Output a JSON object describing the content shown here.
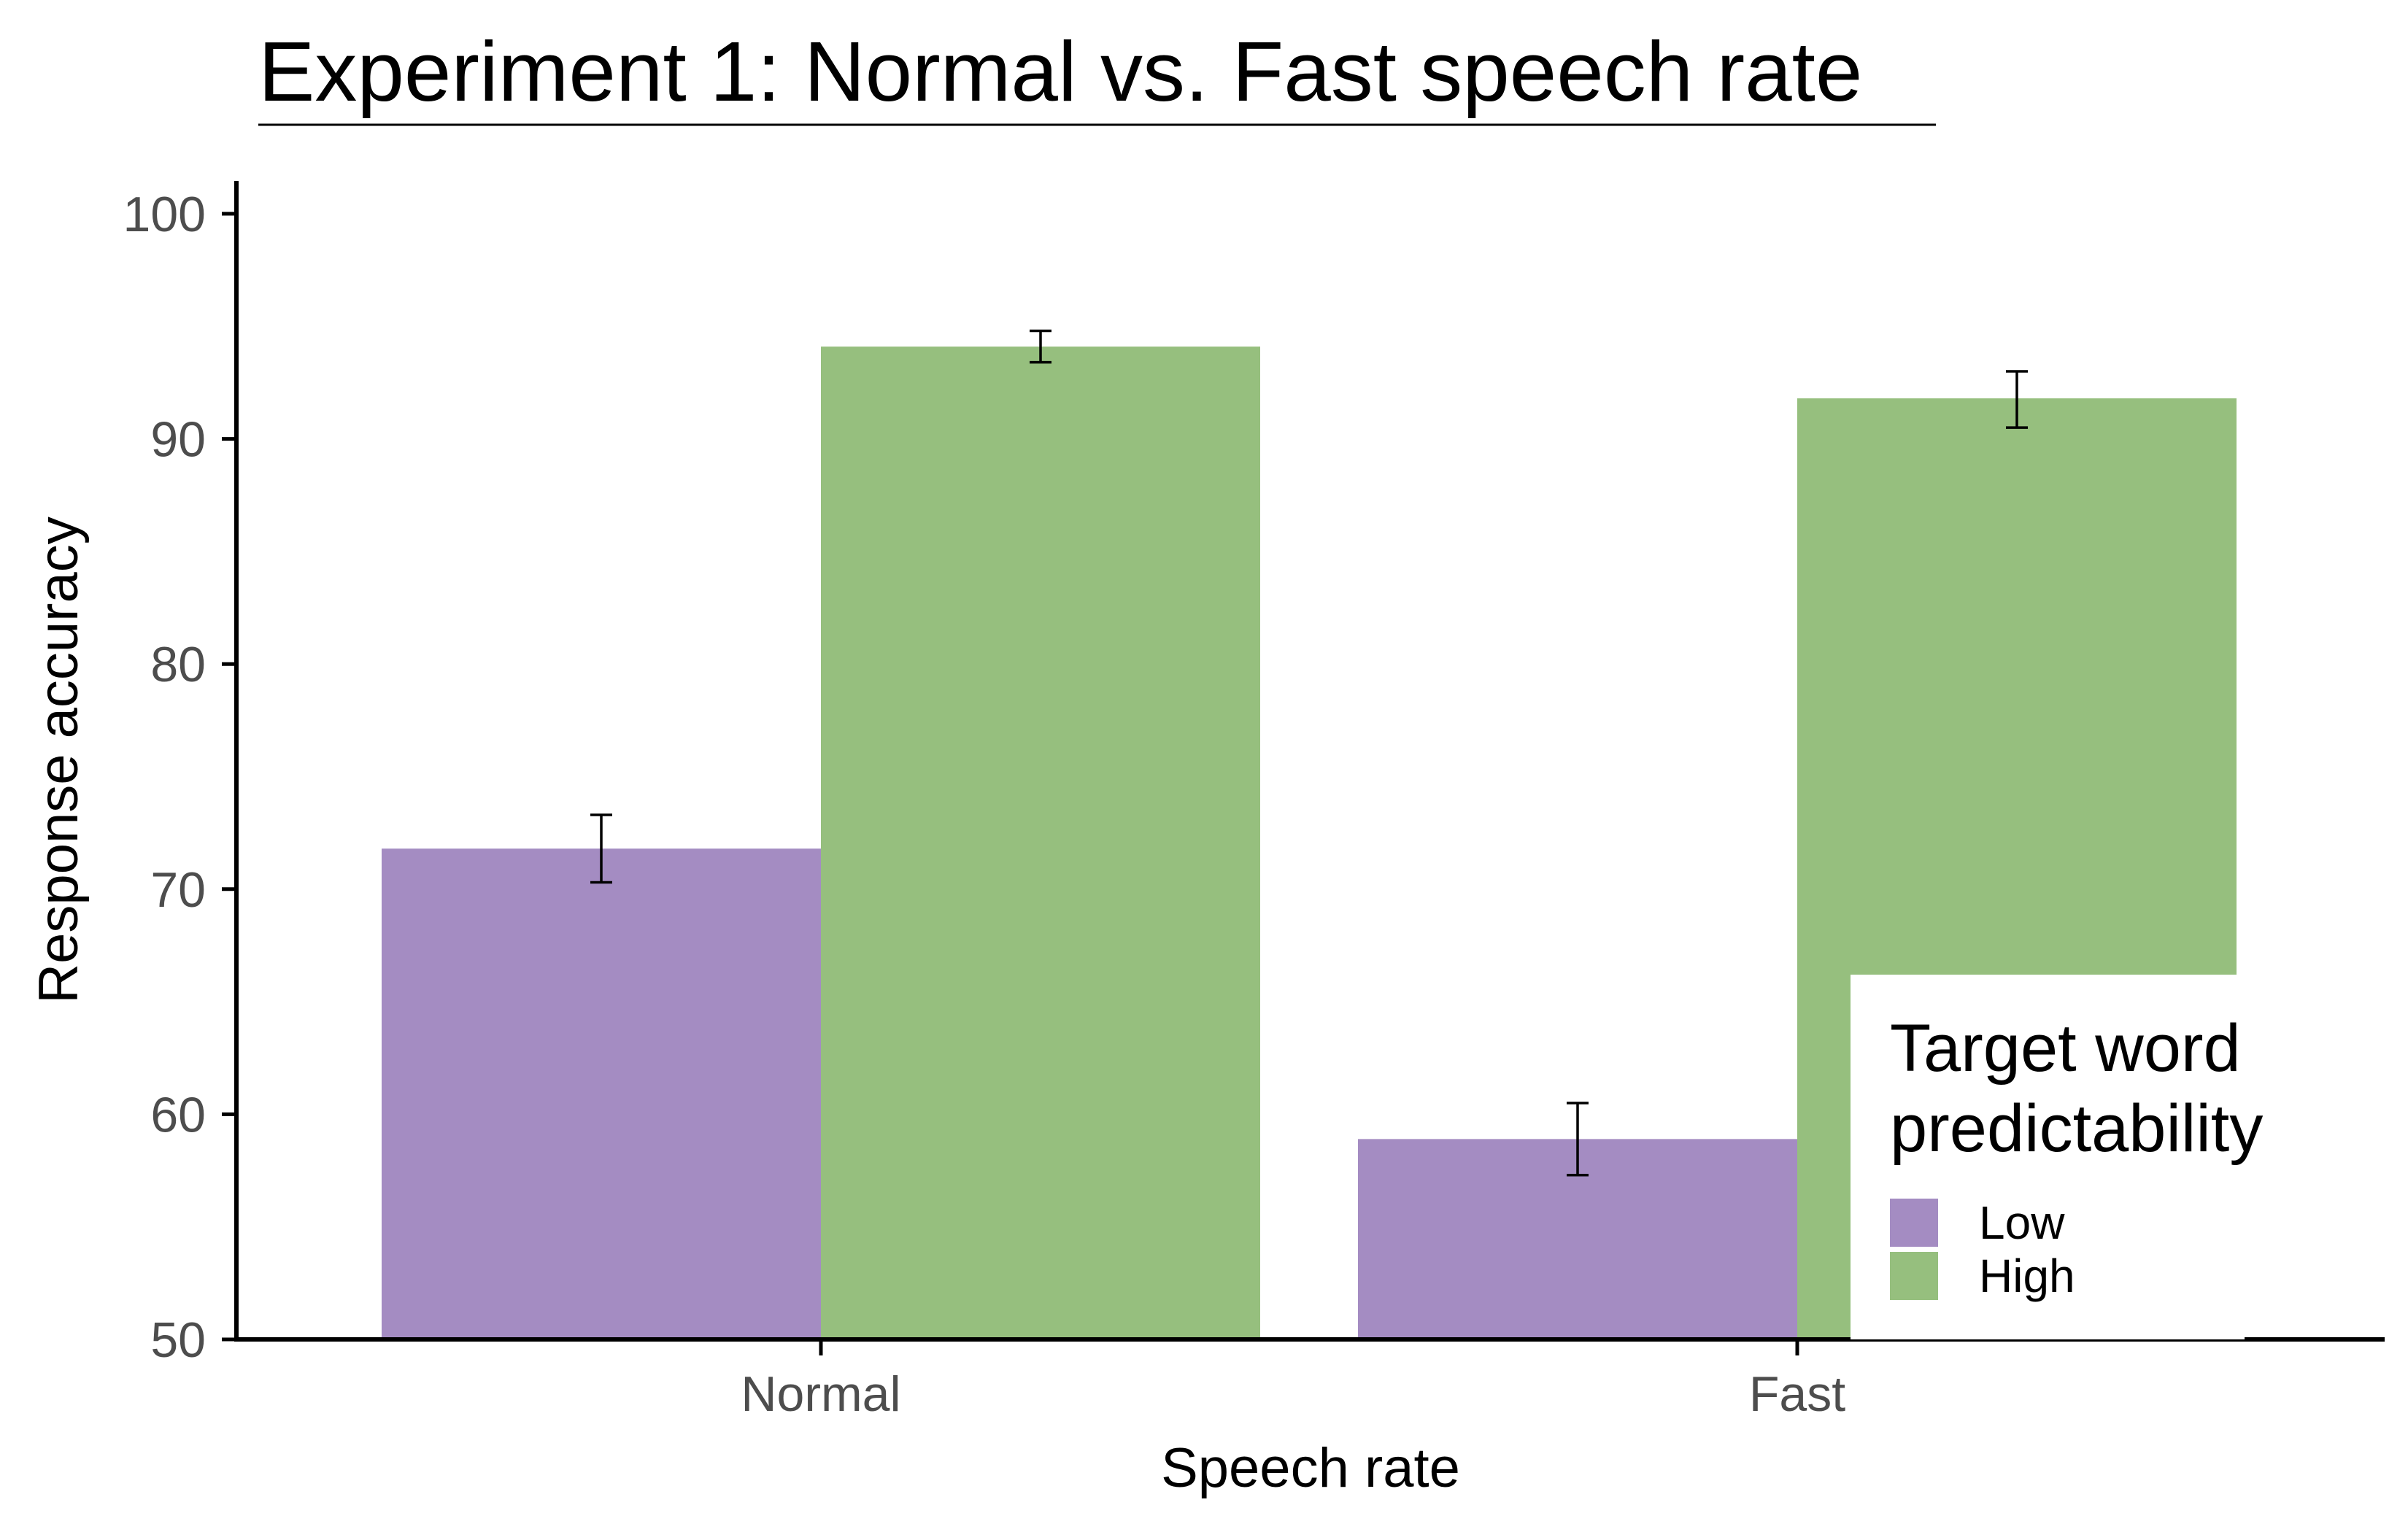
{
  "chart_data": {
    "type": "bar",
    "title": "Experiment 1: Normal vs. Fast speech rate",
    "xlabel": "Speech rate",
    "ylabel": "Response accuracy",
    "categories": [
      "Normal",
      "Fast"
    ],
    "ylim": [
      50,
      100
    ],
    "yticks": [
      50,
      60,
      70,
      80,
      90,
      100
    ],
    "grid": false,
    "legend": {
      "title_lines": [
        "Target word",
        "predictability"
      ],
      "placement": "bottom-right"
    },
    "series": [
      {
        "name": "Low",
        "color": "#a48cc2",
        "values": [
          71.8,
          58.9
        ],
        "error_low": [
          70.3,
          57.3
        ],
        "error_high": [
          73.3,
          60.5
        ]
      },
      {
        "name": "High",
        "color": "#96bf7e",
        "values": [
          94.1,
          91.8
        ],
        "error_low": [
          93.4,
          90.5
        ],
        "error_high": [
          94.8,
          93.0
        ]
      }
    ]
  }
}
